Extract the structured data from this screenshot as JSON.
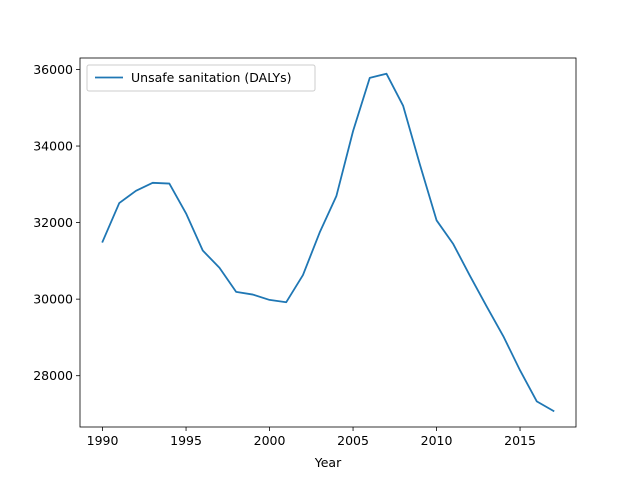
{
  "chart_data": {
    "type": "line",
    "title": "",
    "xlabel": "Year",
    "ylabel": "",
    "xlim": [
      1988.65,
      2018.35
    ],
    "ylim": [
      26660,
      36300
    ],
    "xticks": [
      1990,
      1995,
      2000,
      2005,
      2010,
      2015
    ],
    "yticks": [
      28000,
      30000,
      32000,
      34000,
      36000
    ],
    "grid": false,
    "legend": "top-left",
    "x": [
      1990,
      1991,
      1992,
      1993,
      1994,
      1995,
      1996,
      1997,
      1998,
      1999,
      2000,
      2001,
      2002,
      2003,
      2004,
      2005,
      2006,
      2007,
      2008,
      2009,
      2010,
      2011,
      2012,
      2013,
      2014,
      2015,
      2016,
      2017
    ],
    "series": [
      {
        "name": "Unsafe sanitation (DALYs)",
        "color": "#1f77b4",
        "values": [
          31500,
          32510,
          32830,
          33040,
          33020,
          32240,
          31270,
          30820,
          30190,
          30120,
          29980,
          29920,
          30630,
          31740,
          32690,
          34390,
          35780,
          35890,
          35050,
          33520,
          32060,
          31440,
          30610,
          29810,
          29030,
          28140,
          27330,
          27080
        ]
      }
    ]
  }
}
